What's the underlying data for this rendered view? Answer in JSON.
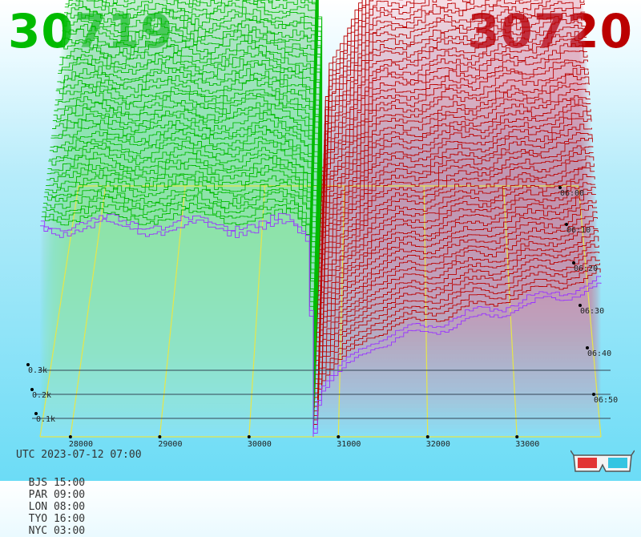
{
  "header": {
    "bid_price": "30719",
    "ask_price": "30720",
    "bid_color": "#00bb00",
    "ask_color": "#bb0000"
  },
  "footer": {
    "utc": "UTC 2023-07-12 07:00",
    "zones": [
      "BJS 15:00",
      "PAR 09:00",
      "LON 08:00",
      "TYO 16:00",
      "NYC 03:00"
    ]
  },
  "chart_data": {
    "type": "area",
    "x_ticks": [
      "28000",
      "29000",
      "30000",
      "31000",
      "32000",
      "33000"
    ],
    "depth_ticks": [
      "0.1k",
      "0.2k",
      "0.3k"
    ],
    "time_ticks": [
      "06:00",
      "06:10",
      "06:20",
      "06:30",
      "06:40",
      "06:50"
    ],
    "mid_price": 30719.5,
    "series": [
      {
        "color": "#00bb00"
      },
      {
        "color": "#bb0000"
      }
    ],
    "grid": true,
    "legend": "none"
  }
}
